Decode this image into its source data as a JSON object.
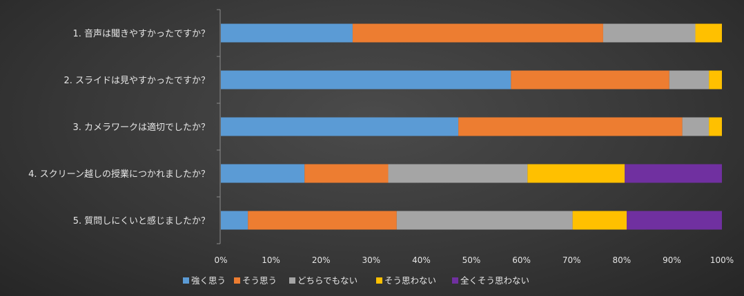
{
  "chart_data": {
    "type": "bar",
    "orientation": "horizontal",
    "stacked": true,
    "title": "",
    "xlabel": "",
    "ylabel": "",
    "xlim": [
      0,
      100
    ],
    "x_ticks": [
      "0%",
      "10%",
      "20%",
      "30%",
      "40%",
      "50%",
      "60%",
      "70%",
      "80%",
      "90%",
      "100%"
    ],
    "grid": false,
    "legend_position": "bottom",
    "categories": [
      "1. 音声は聞きやすかったですか？",
      "2. スライドは見やすかったですか？",
      "3. カメラワークは適切でしたか？",
      "4. スクリーン越しの授業につかれましたか？",
      "5. 質問しにくいと感じましたか？"
    ],
    "series": [
      {
        "name": "強く思う",
        "color": "#5B9BD5",
        "values": [
          26.3,
          57.9,
          47.4,
          16.7,
          5.4
        ]
      },
      {
        "name": "そう思う",
        "color": "#ED7D31",
        "values": [
          50.0,
          31.6,
          44.7,
          16.7,
          29.7
        ]
      },
      {
        "name": "どちらでもない",
        "color": "#A5A5A5",
        "values": [
          18.4,
          7.9,
          5.3,
          27.8,
          35.1
        ]
      },
      {
        "name": "そう思わない",
        "color": "#FFC000",
        "values": [
          5.3,
          2.6,
          2.6,
          19.4,
          10.8
        ]
      },
      {
        "name": "全くそう思わない",
        "color": "#7030A0",
        "values": [
          0,
          0,
          0,
          19.4,
          19.0
        ]
      }
    ]
  }
}
